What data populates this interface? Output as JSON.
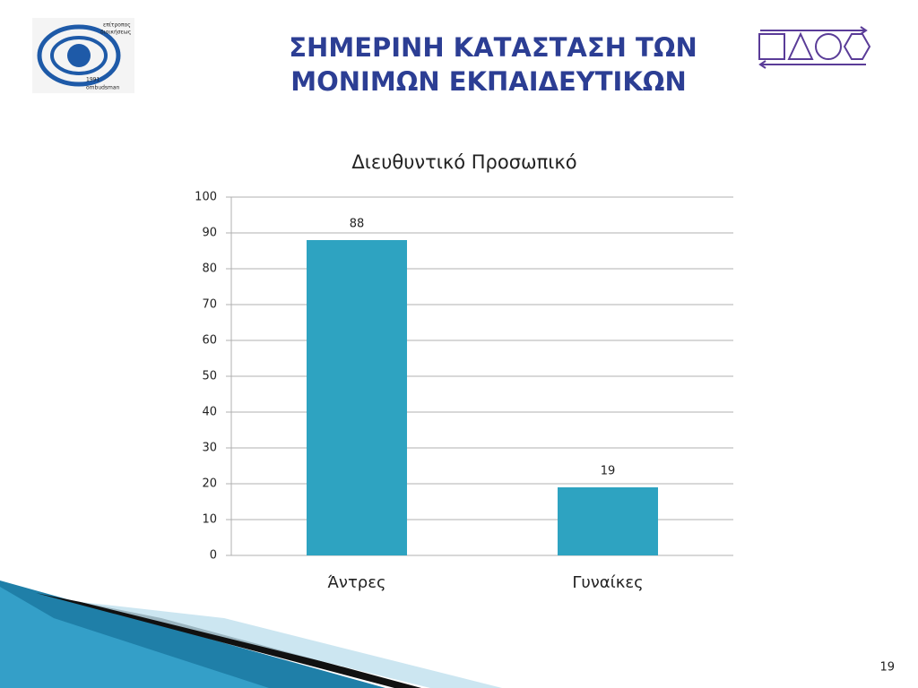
{
  "slide": {
    "title_lines": [
      "ΣΗΜΕΡΙΝΗ ΚΑΤΑΣΤΑΣΗ ΤΩΝ",
      "ΜΟΝΙΜΩΝ ΕΚΠΑΙΔΕΥΤΙΚΩΝ"
    ],
    "logo_texts": [
      "επίτροπος",
      "διοικήσεως",
      "1991",
      "ombudsman"
    ],
    "page_number": "19"
  },
  "chart_data": {
    "type": "bar",
    "title": "Διευθυντικό Προσωπικό",
    "categories": [
      "Άντρες",
      "Γυναίκες"
    ],
    "values": [
      88,
      19
    ],
    "color": "#2ea3c1",
    "ylim": [
      0,
      100
    ],
    "yticks": [
      0,
      10,
      20,
      30,
      40,
      50,
      60,
      70,
      80,
      90,
      100
    ],
    "grid": true
  }
}
